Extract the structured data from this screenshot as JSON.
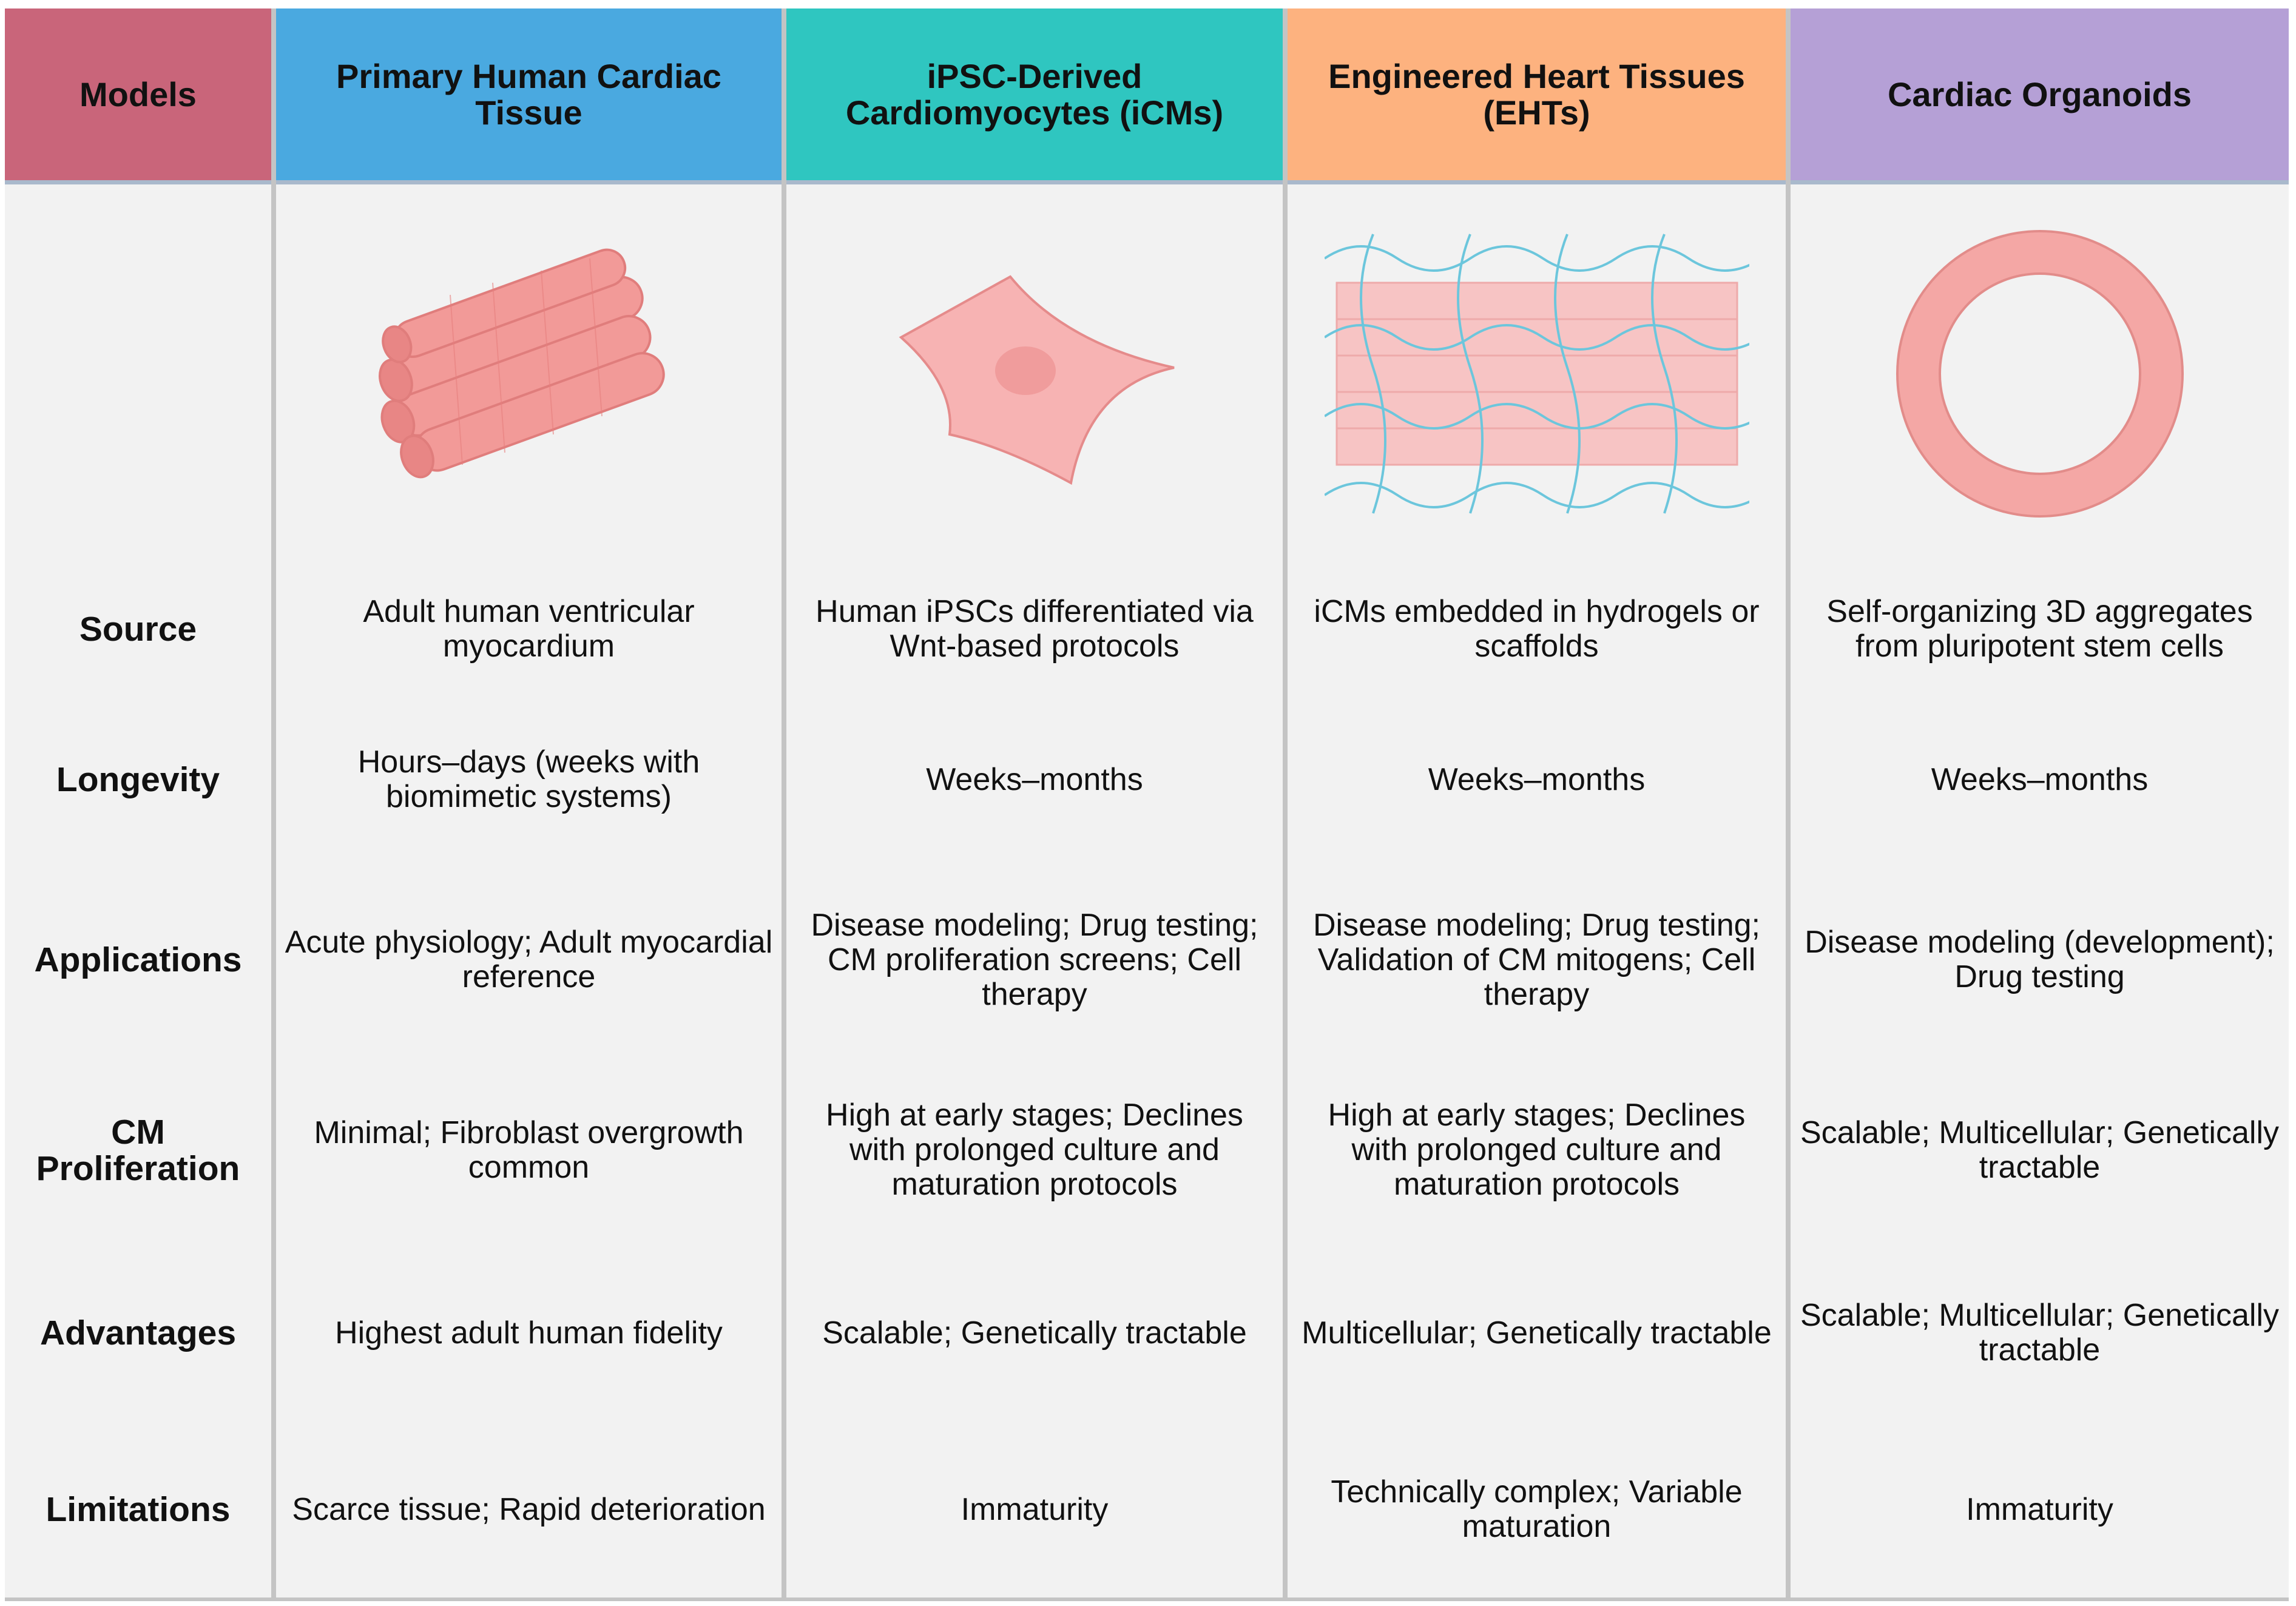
{
  "header": {
    "cells": [
      "Models",
      "Primary Human Cardiac Tissue",
      "iPSC-Derived Cardiomyocytes (iCMs)",
      "Engineered Heart Tissues (EHTs)",
      "Cardiac Organoids"
    ]
  },
  "rows": [
    {
      "label": "Source",
      "cells": [
        "Adult human ventricular myocardium",
        "Human iPSCs differentiated via Wnt-based protocols",
        "iCMs embedded in hydrogels or scaffolds",
        "Self-organizing 3D aggregates from pluripotent stem cells"
      ]
    },
    {
      "label": "Longevity",
      "cells": [
        "Hours–days (weeks with biomimetic systems)",
        "Weeks–months",
        "Weeks–months",
        "Weeks–months"
      ]
    },
    {
      "label": "Applications",
      "cells": [
        "Acute physiology; Adult myocardial reference",
        "Disease modeling; Drug testing; CM proliferation screens; Cell therapy",
        "Disease modeling; Drug testing; Validation of CM mitogens; Cell therapy",
        "Disease modeling (development); Drug testing"
      ]
    },
    {
      "label": "CM Proliferation",
      "cells": [
        "Minimal; Fibroblast overgrowth common",
        "High at early stages; Declines with prolonged culture and maturation protocols",
        "High at early stages; Declines with prolonged culture and maturation protocols",
        "Scalable; Multicellular; Genetically tractable"
      ]
    },
    {
      "label": "Advantages",
      "cells": [
        "Highest adult human fidelity",
        "Scalable; Genetically tractable",
        "Multicellular; Genetically tractable",
        "Scalable; Multicellular; Genetically tractable"
      ]
    },
    {
      "label": "Limitations",
      "cells": [
        "Scarce tissue; Rapid deterioration",
        "Immaturity",
        "Technically complex; Variable maturation",
        "Immaturity"
      ]
    }
  ]
}
